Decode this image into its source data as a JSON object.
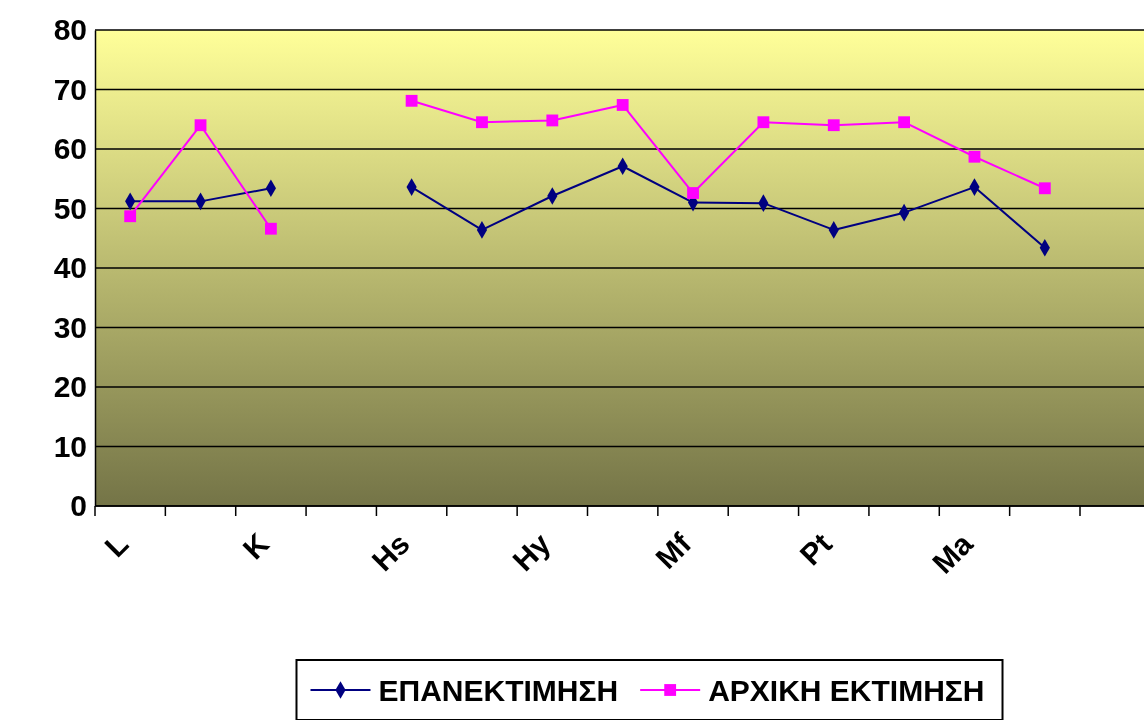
{
  "chart_data": {
    "type": "line",
    "categories": [
      "L",
      null,
      "K",
      null,
      "Hs",
      null,
      "Hy",
      null,
      "Mf",
      null,
      "Pt",
      null,
      "Ma",
      null
    ],
    "series": [
      {
        "name": "ΕΠΑΝΕΚΤΙΜΗΣΗ",
        "color": "#000080",
        "marker": "diamond",
        "values": [
          51.2,
          51.2,
          53.4,
          null,
          53.6,
          46.4,
          52.1,
          57.1,
          51.0,
          50.9,
          46.4,
          49.3,
          53.6,
          43.4
        ]
      },
      {
        "name": "ΑΡΧΙΚΗ ΕΚΤΙΜΗΣΗ",
        "color": "#ff00ff",
        "marker": "square",
        "values": [
          48.7,
          64.0,
          46.6,
          null,
          68.1,
          64.5,
          64.8,
          67.4,
          52.6,
          64.5,
          64.0,
          64.5,
          58.7,
          53.4
        ]
      }
    ],
    "ylim": [
      0,
      80
    ],
    "yticks": [
      0,
      10,
      20,
      30,
      40,
      50,
      60,
      70,
      80
    ],
    "grid": "y",
    "legend": "bottom"
  }
}
